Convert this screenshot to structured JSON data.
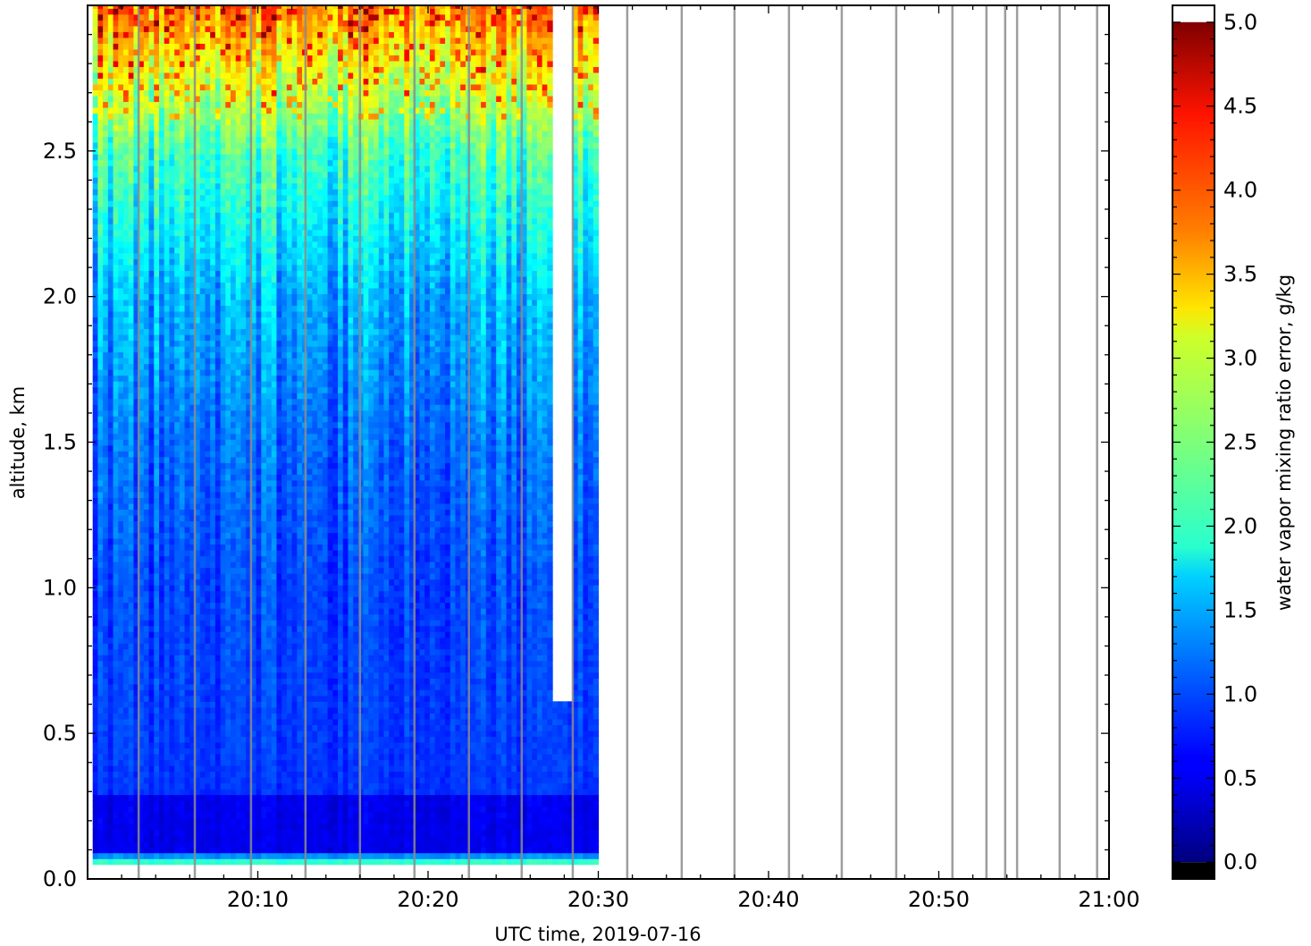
{
  "chart_data": {
    "type": "heatmap",
    "xlabel": "UTC time,  2019-07-16",
    "ylabel": "altitude, km",
    "colorbar_label": "water vapor mixing ratio error, g/kg",
    "xlim": [
      "20:00",
      "21:00"
    ],
    "ylim": [
      0.0,
      3.0
    ],
    "x_ticks": [
      "20:10",
      "20:20",
      "20:30",
      "20:40",
      "20:50",
      "21:00"
    ],
    "y_ticks": [
      "0.0",
      "0.5",
      "1.0",
      "1.5",
      "2.0",
      "2.5"
    ],
    "colorbar_range": [
      -0.1,
      5.1
    ],
    "colorbar_ticks": [
      "0.0",
      "0.5",
      "1.0",
      "1.5",
      "2.0",
      "2.5",
      "3.0",
      "3.5",
      "4.0",
      "4.5",
      "5.0"
    ],
    "colormap": "jet",
    "colorbar_under_color": "#000000",
    "colorbar_over_color": "#ffffff",
    "data_extent_minutes": [
      0.3,
      30.0
    ],
    "gap_minutes": [
      27.2,
      28.3
    ],
    "profile_error_by_altitude": [
      {
        "altitude_km": 0.05,
        "error": 2.5
      },
      {
        "altitude_km": 0.1,
        "error": 0.45
      },
      {
        "altitude_km": 0.29,
        "error": 0.45
      },
      {
        "altitude_km": 0.3,
        "error": 0.8
      },
      {
        "altitude_km": 0.5,
        "error": 0.85
      },
      {
        "altitude_km": 1.0,
        "error": 0.9
      },
      {
        "altitude_km": 1.5,
        "error": 1.1
      },
      {
        "altitude_km": 2.0,
        "error": 1.45
      },
      {
        "altitude_km": 2.5,
        "error": 2.2
      },
      {
        "altitude_km": 2.8,
        "error": 3.1
      },
      {
        "altitude_km": 3.0,
        "error": 3.8
      }
    ],
    "vertical_line_minutes": [
      3.0,
      6.3,
      9.6,
      12.8,
      16.0,
      19.2,
      22.4,
      25.5,
      28.5,
      31.7,
      34.9,
      38.0,
      41.2,
      44.3,
      47.5,
      50.8,
      52.8,
      53.9,
      54.6,
      57.1,
      59.3
    ]
  }
}
